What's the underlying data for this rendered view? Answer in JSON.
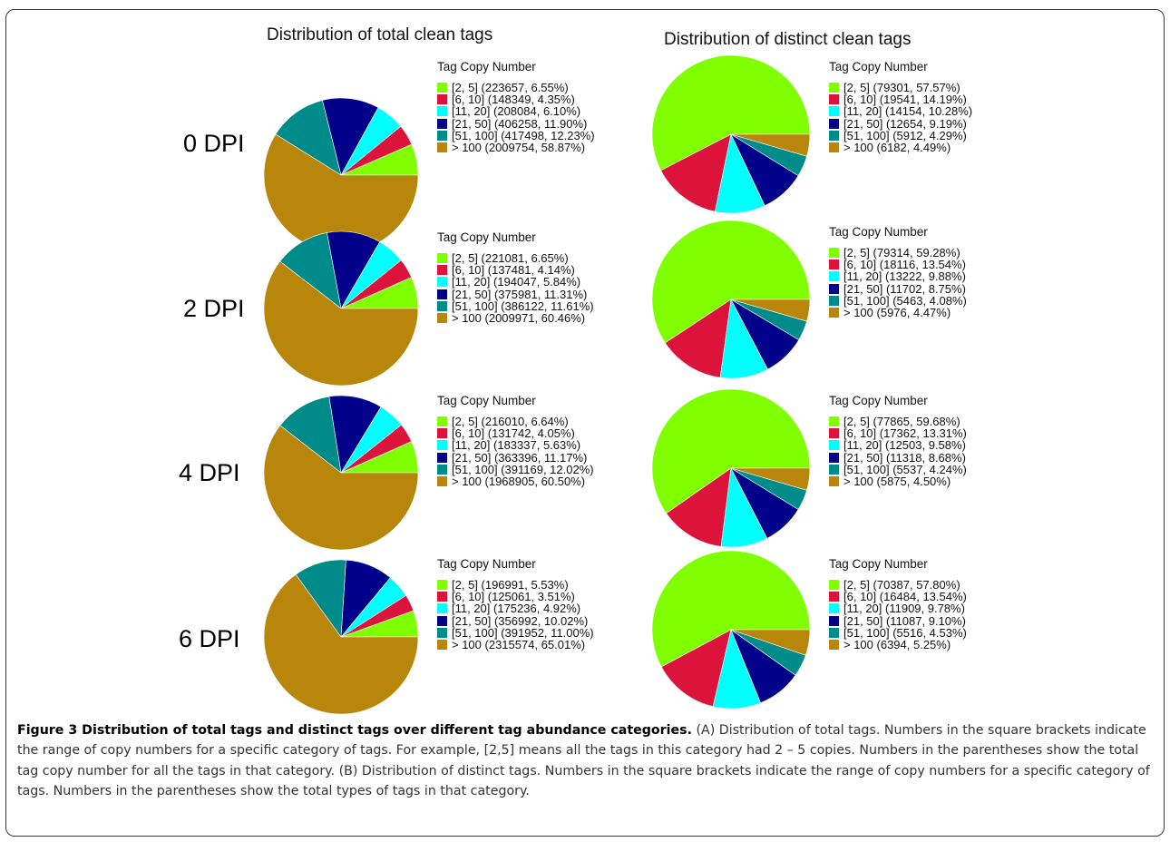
{
  "column_titles": [
    "Distribution of total clean tags",
    "Distribution of distinct clean tags"
  ],
  "legend_title": "Tag Copy Number",
  "category_colors": [
    "#7fff00",
    "#dc143c",
    "#00ffff",
    "#00008b",
    "#008b8b",
    "#b8860b"
  ],
  "caption": {
    "label": "Figure 3 Distribution of total tags and distinct tags over different tag abundance categories.",
    "text": " (A) Distribution of total tags. Numbers in the square brackets indicate the range of copy numbers for a specific category of tags. For example, [2,5] means all the tags in this category had 2 – 5 copies. Numbers in the parentheses show the total tag copy number for all the tags in that category. (B) Distribution of distinct tags. Numbers in the square brackets indicate the range of copy numbers for a specific category of tags. Numbers in the parentheses show the total types of tags in that category."
  },
  "chart_data": [
    {
      "type": "pie",
      "row_label": "0 DPI",
      "legend_title": "Tag Copy Number",
      "categories": [
        "[2, 5]",
        "[6, 10]",
        "[11, 20]",
        "[21, 50]",
        "[51, 100]",
        "> 100"
      ],
      "values": [
        223657,
        148349,
        208084,
        406258,
        417498,
        2009754
      ],
      "legend": [
        "[2, 5] (223657, 6.55%)",
        "[6, 10] (148349, 4.35%)",
        "[11, 20] (208084, 6.10%)",
        "[21, 50] (406258, 11.90%)",
        "[51, 100] (417498, 12.23%)",
        "> 100 (2009754, 58.87%)"
      ]
    },
    {
      "type": "pie",
      "row_label": "0 DPI",
      "legend_title": "Tag Copy Number",
      "categories": [
        "[2, 5]",
        "[6, 10]",
        "[11, 20]",
        "[21, 50]",
        "[51, 100]",
        "> 100"
      ],
      "values": [
        79301,
        19541,
        14154,
        12654,
        5912,
        6182
      ],
      "legend": [
        "[2, 5] (79301, 57.57%)",
        "[6, 10] (19541, 14.19%)",
        "[11, 20] (14154, 10.28%)",
        "[21, 50] (12654, 9.19%)",
        "[51, 100] (5912, 4.29%)",
        "> 100 (6182, 4.49%)"
      ]
    },
    {
      "type": "pie",
      "row_label": "2 DPI",
      "legend_title": "Tag Copy Number",
      "categories": [
        "[2, 5]",
        "[6, 10]",
        "[11, 20]",
        "[21, 50]",
        "[51, 100]",
        "> 100"
      ],
      "values": [
        221081,
        137481,
        194047,
        375981,
        386122,
        2009971
      ],
      "legend": [
        "[2, 5] (221081, 6.65%)",
        "[6, 10] (137481, 4.14%)",
        "[11, 20] (194047, 5.84%)",
        "[21, 50] (375981, 11.31%)",
        "[51, 100] (386122, 11.61%)",
        "> 100 (2009971, 60.46%)"
      ]
    },
    {
      "type": "pie",
      "row_label": "2 DPI",
      "legend_title": "Tag Copy Number",
      "categories": [
        "[2, 5]",
        "[6, 10]",
        "[11, 20]",
        "[21, 50]",
        "[51, 100]",
        "> 100"
      ],
      "values": [
        79314,
        18116,
        13222,
        11702,
        5463,
        5976
      ],
      "legend": [
        "[2, 5] (79314, 59.28%)",
        "[6, 10] (18116, 13.54%)",
        "[11, 20] (13222, 9.88%)",
        "[21, 50] (11702, 8.75%)",
        "[51, 100] (5463, 4.08%)",
        "> 100 (5976, 4.47%)"
      ]
    },
    {
      "type": "pie",
      "row_label": "4 DPI",
      "legend_title": "Tag Copy Number",
      "categories": [
        "[2, 5]",
        "[6, 10]",
        "[11, 20]",
        "[21, 50]",
        "[51, 100]",
        "> 100"
      ],
      "values": [
        216010,
        131742,
        183337,
        363396,
        391169,
        1968905
      ],
      "legend": [
        "[2, 5] (216010, 6.64%)",
        "[6, 10] (131742, 4.05%)",
        "[11, 20] (183337, 5.63%)",
        "[21, 50] (363396, 11.17%)",
        "[51, 100] (391169, 12.02%)",
        "> 100 (1968905, 60.50%)"
      ]
    },
    {
      "type": "pie",
      "row_label": "4 DPI",
      "legend_title": "Tag Copy Number",
      "categories": [
        "[2, 5]",
        "[6, 10]",
        "[11, 20]",
        "[21, 50]",
        "[51, 100]",
        "> 100"
      ],
      "values": [
        77865,
        17362,
        12503,
        11318,
        5537,
        5875
      ],
      "legend": [
        "[2, 5] (77865, 59.68%)",
        "[6, 10] (17362, 13.31%)",
        "[11, 20] (12503, 9.58%)",
        "[21, 50] (11318, 8.68%)",
        "[51, 100] (5537, 4.24%)",
        "> 100 (5875, 4.50%)"
      ]
    },
    {
      "type": "pie",
      "row_label": "6 DPI",
      "legend_title": "Tag Copy Number",
      "categories": [
        "[2, 5]",
        "[6, 10]",
        "[11, 20]",
        "[21, 50]",
        "[51, 100]",
        "> 100"
      ],
      "values": [
        196991,
        125061,
        175236,
        356992,
        391952,
        2315574
      ],
      "legend": [
        "[2, 5] (196991, 5.53%)",
        "[6, 10] (125061, 3.51%)",
        "[11, 20] (175236, 4.92%)",
        "[21, 50] (356992, 10.02%)",
        "[51, 100] (391952, 11.00%)",
        "> 100 (2315574, 65.01%)"
      ]
    },
    {
      "type": "pie",
      "row_label": "6 DPI",
      "legend_title": "Tag Copy Number",
      "categories": [
        "[2, 5]",
        "[6, 10]",
        "[11, 20]",
        "[21, 50]",
        "[51, 100]",
        "> 100"
      ],
      "values": [
        70387,
        16484,
        11909,
        11087,
        5516,
        6394
      ],
      "legend": [
        "[2, 5] (70387, 57.80%)",
        "[6, 10] (16484, 13.54%)",
        "[11, 20] (11909, 9.78%)",
        "[21, 50] (11087, 9.10%)",
        "[51, 100] (5516, 4.53%)",
        "> 100 (6394, 5.25%)"
      ]
    }
  ]
}
